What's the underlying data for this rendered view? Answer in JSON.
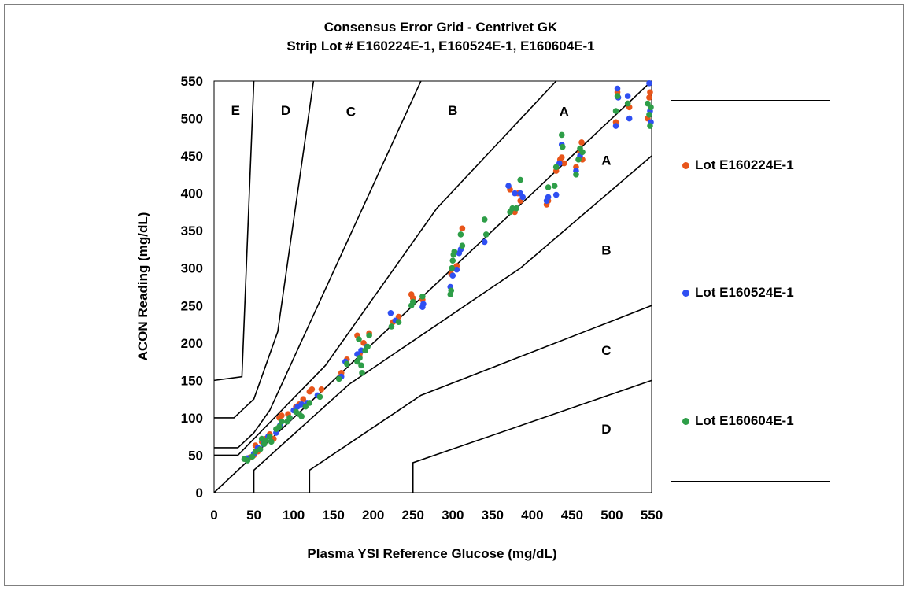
{
  "chart_data": {
    "type": "scatter",
    "title": "Consensus Error Grid - Centrivet GK",
    "subtitle": "Strip Lot # E160224E-1, E160524E-1, E160604E-1",
    "xlabel": "Plasma YSI Reference Glucose (mg/dL)",
    "ylabel": "ACON Reading (mg/dL)",
    "xlim": [
      0,
      550
    ],
    "ylim": [
      0,
      550
    ],
    "xticks": [
      "0",
      "50",
      "100",
      "150",
      "200",
      "250",
      "300",
      "350",
      "400",
      "450",
      "500",
      "550"
    ],
    "yticks": [
      "0",
      "50",
      "100",
      "150",
      "200",
      "250",
      "300",
      "350",
      "400",
      "450",
      "500",
      "550"
    ],
    "grid": false,
    "legend_position": "right",
    "identity_line": [
      [
        0,
        0
      ],
      [
        550,
        550
      ]
    ],
    "zone_boundaries": [
      [
        [
          0,
          150
        ],
        [
          35,
          155
        ],
        [
          50,
          550
        ]
      ],
      [
        [
          0,
          100
        ],
        [
          25,
          100
        ],
        [
          50,
          125
        ],
        [
          80,
          215
        ],
        [
          125,
          550
        ]
      ],
      [
        [
          0,
          60
        ],
        [
          30,
          60
        ],
        [
          50,
          80
        ],
        [
          70,
          110
        ],
        [
          260,
          550
        ]
      ],
      [
        [
          0,
          50
        ],
        [
          30,
          50
        ],
        [
          140,
          170
        ],
        [
          280,
          380
        ],
        [
          430,
          550
        ]
      ],
      [
        [
          50,
          0
        ],
        [
          50,
          30
        ],
        [
          170,
          145
        ],
        [
          385,
          300
        ],
        [
          550,
          450
        ]
      ],
      [
        [
          120,
          0
        ],
        [
          120,
          30
        ],
        [
          260,
          130
        ],
        [
          550,
          250
        ]
      ],
      [
        [
          250,
          0
        ],
        [
          250,
          40
        ],
        [
          550,
          150
        ]
      ]
    ],
    "zone_labels": [
      {
        "text": "E",
        "x": 27,
        "y": 505
      },
      {
        "text": "D",
        "x": 90,
        "y": 505
      },
      {
        "text": "C",
        "x": 172,
        "y": 503
      },
      {
        "text": "B",
        "x": 300,
        "y": 505
      },
      {
        "text": "A",
        "x": 440,
        "y": 503
      },
      {
        "text": "A",
        "x": 493,
        "y": 438
      },
      {
        "text": "B",
        "x": 493,
        "y": 318
      },
      {
        "text": "C",
        "x": 493,
        "y": 184
      },
      {
        "text": "D",
        "x": 493,
        "y": 79
      }
    ],
    "series": [
      {
        "name": "Lot E160224E-1",
        "color": "#E8551A",
        "points": [
          [
            40,
            45
          ],
          [
            45,
            47
          ],
          [
            50,
            50
          ],
          [
            52,
            63
          ],
          [
            55,
            55
          ],
          [
            60,
            68
          ],
          [
            65,
            72
          ],
          [
            70,
            78
          ],
          [
            75,
            72
          ],
          [
            82,
            100
          ],
          [
            85,
            103
          ],
          [
            93,
            105
          ],
          [
            103,
            115
          ],
          [
            107,
            118
          ],
          [
            112,
            125
          ],
          [
            120,
            135
          ],
          [
            123,
            138
          ],
          [
            135,
            138
          ],
          [
            160,
            160
          ],
          [
            167,
            178
          ],
          [
            180,
            210
          ],
          [
            183,
            185
          ],
          [
            188,
            200
          ],
          [
            195,
            213
          ],
          [
            225,
            228
          ],
          [
            232,
            235
          ],
          [
            248,
            265
          ],
          [
            250,
            260
          ],
          [
            262,
            258
          ],
          [
            298,
            292
          ],
          [
            302,
            300
          ],
          [
            305,
            303
          ],
          [
            312,
            353
          ],
          [
            372,
            405
          ],
          [
            378,
            375
          ],
          [
            382,
            400
          ],
          [
            385,
            390
          ],
          [
            418,
            385
          ],
          [
            420,
            390
          ],
          [
            430,
            430
          ],
          [
            435,
            445
          ],
          [
            437,
            448
          ],
          [
            440,
            440
          ],
          [
            455,
            435
          ],
          [
            460,
            455
          ],
          [
            462,
            468
          ],
          [
            463,
            445
          ],
          [
            505,
            495
          ],
          [
            507,
            535
          ],
          [
            520,
            520
          ],
          [
            522,
            515
          ],
          [
            545,
            500
          ],
          [
            547,
            528
          ],
          [
            548,
            535
          ]
        ]
      },
      {
        "name": "Lot E160524E-1",
        "color": "#2F4FF2",
        "points": [
          [
            42,
            46
          ],
          [
            50,
            52
          ],
          [
            55,
            60
          ],
          [
            62,
            65
          ],
          [
            68,
            75
          ],
          [
            78,
            80
          ],
          [
            83,
            90
          ],
          [
            95,
            100
          ],
          [
            100,
            110
          ],
          [
            105,
            115
          ],
          [
            110,
            118
          ],
          [
            117,
            120
          ],
          [
            130,
            130
          ],
          [
            160,
            155
          ],
          [
            165,
            175
          ],
          [
            180,
            185
          ],
          [
            185,
            190
          ],
          [
            192,
            195
          ],
          [
            222,
            240
          ],
          [
            228,
            230
          ],
          [
            262,
            248
          ],
          [
            263,
            252
          ],
          [
            297,
            275
          ],
          [
            300,
            290
          ],
          [
            305,
            298
          ],
          [
            308,
            320
          ],
          [
            310,
            325
          ],
          [
            340,
            335
          ],
          [
            370,
            410
          ],
          [
            378,
            400
          ],
          [
            385,
            400
          ],
          [
            388,
            395
          ],
          [
            418,
            390
          ],
          [
            420,
            395
          ],
          [
            430,
            398
          ],
          [
            434,
            440
          ],
          [
            437,
            465
          ],
          [
            455,
            430
          ],
          [
            460,
            450
          ],
          [
            505,
            490
          ],
          [
            507,
            540
          ],
          [
            508,
            528
          ],
          [
            520,
            530
          ],
          [
            522,
            500
          ],
          [
            547,
            547
          ],
          [
            548,
            510
          ],
          [
            549,
            495
          ]
        ]
      },
      {
        "name": "Lot E160604E-1",
        "color": "#2E9E48",
        "points": [
          [
            38,
            45
          ],
          [
            42,
            43
          ],
          [
            48,
            48
          ],
          [
            52,
            55
          ],
          [
            58,
            58
          ],
          [
            60,
            72
          ],
          [
            63,
            65
          ],
          [
            65,
            70
          ],
          [
            70,
            75
          ],
          [
            72,
            68
          ],
          [
            78,
            85
          ],
          [
            82,
            88
          ],
          [
            85,
            95
          ],
          [
            92,
            95
          ],
          [
            95,
            100
          ],
          [
            103,
            108
          ],
          [
            107,
            105
          ],
          [
            110,
            102
          ],
          [
            115,
            115
          ],
          [
            120,
            120
          ],
          [
            133,
            128
          ],
          [
            157,
            152
          ],
          [
            167,
            172
          ],
          [
            180,
            175
          ],
          [
            182,
            205
          ],
          [
            183,
            180
          ],
          [
            185,
            170
          ],
          [
            186,
            160
          ],
          [
            190,
            190
          ],
          [
            193,
            195
          ],
          [
            195,
            210
          ],
          [
            223,
            222
          ],
          [
            232,
            228
          ],
          [
            248,
            250
          ],
          [
            250,
            255
          ],
          [
            262,
            262
          ],
          [
            297,
            265
          ],
          [
            298,
            270
          ],
          [
            299,
            300
          ],
          [
            300,
            310
          ],
          [
            301,
            318
          ],
          [
            302,
            322
          ],
          [
            310,
            345
          ],
          [
            312,
            330
          ],
          [
            340,
            365
          ],
          [
            342,
            345
          ],
          [
            372,
            375
          ],
          [
            375,
            380
          ],
          [
            380,
            380
          ],
          [
            385,
            418
          ],
          [
            420,
            408
          ],
          [
            428,
            410
          ],
          [
            430,
            435
          ],
          [
            437,
            478
          ],
          [
            438,
            462
          ],
          [
            455,
            425
          ],
          [
            458,
            445
          ],
          [
            460,
            460
          ],
          [
            463,
            455
          ],
          [
            505,
            510
          ],
          [
            507,
            530
          ],
          [
            520,
            520
          ],
          [
            545,
            520
          ],
          [
            547,
            505
          ],
          [
            548,
            490
          ],
          [
            549,
            515
          ]
        ]
      }
    ]
  }
}
